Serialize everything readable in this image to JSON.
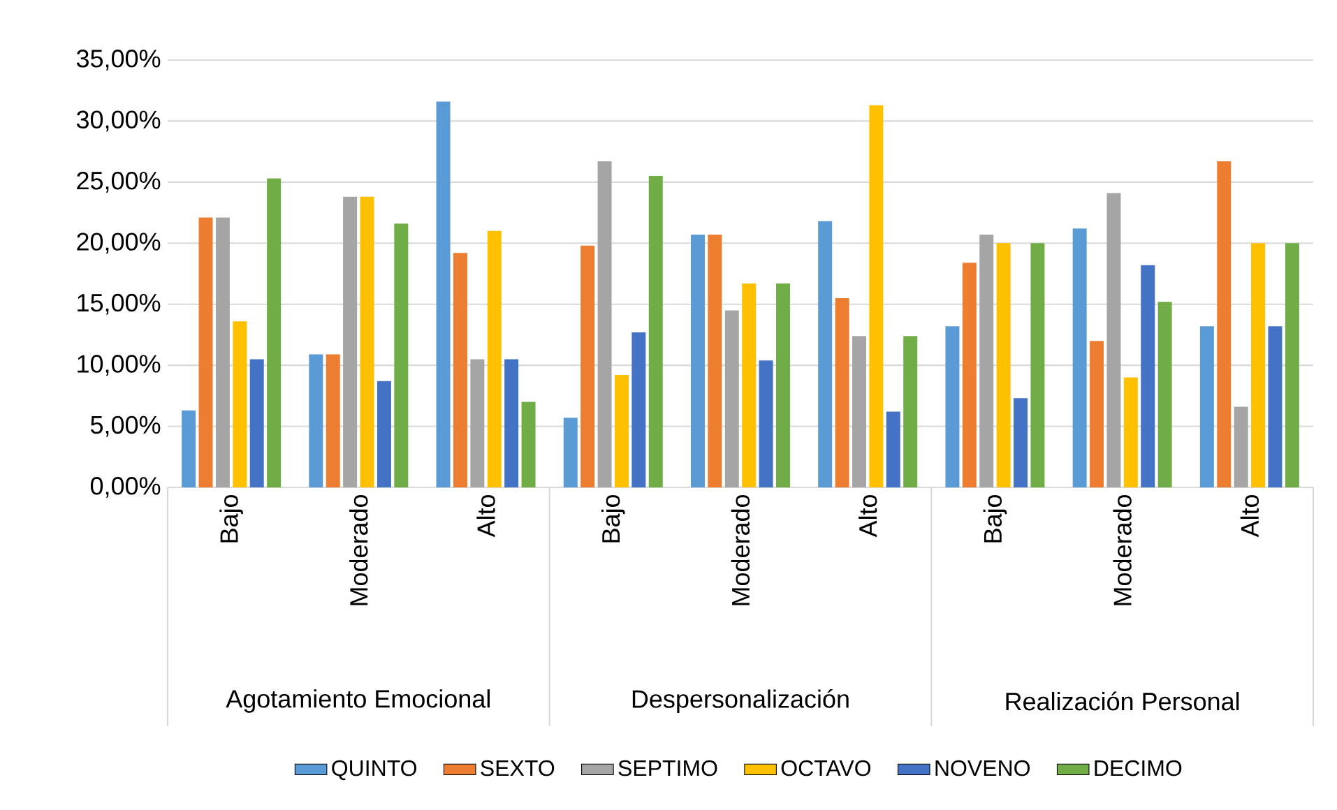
{
  "chart_data": {
    "type": "bar",
    "categories": [
      "Bajo",
      "Moderado",
      "Alto",
      "Bajo",
      "Moderado",
      "Alto",
      "Bajo",
      "Moderado",
      "Alto"
    ],
    "annotations": [
      "Agotamiento Emocional",
      "Despersonalización",
      "Realización Personal"
    ],
    "series": [
      {
        "name": "QUINTO",
        "color": "#5b9bd5",
        "values": [
          6.3,
          10.9,
          31.6,
          5.7,
          20.7,
          21.8,
          13.2,
          21.2,
          13.2
        ]
      },
      {
        "name": "SEXTO",
        "color": "#ed7d31",
        "values": [
          22.1,
          10.9,
          19.2,
          19.8,
          20.7,
          15.5,
          18.4,
          12.0,
          26.7
        ]
      },
      {
        "name": "SEPTIMO",
        "color": "#a5a5a5",
        "values": [
          22.1,
          23.8,
          10.5,
          26.7,
          14.5,
          12.4,
          20.7,
          24.1,
          6.6
        ]
      },
      {
        "name": "OCTAVO",
        "color": "#ffc000",
        "values": [
          13.6,
          23.8,
          21.0,
          9.2,
          16.7,
          31.3,
          20.0,
          9.0,
          20.0
        ]
      },
      {
        "name": "NOVENO",
        "color": "#4472c4",
        "values": [
          10.5,
          8.7,
          10.5,
          12.7,
          10.4,
          6.2,
          7.3,
          18.2,
          13.2
        ]
      },
      {
        "name": "DECIMO",
        "color": "#70ad47",
        "values": [
          25.3,
          21.6,
          7.0,
          25.5,
          16.7,
          12.4,
          20.0,
          15.2,
          20.0
        ]
      }
    ],
    "ylim": [
      0,
      35
    ],
    "yticks": [
      {
        "value": 0,
        "label": "0,00%"
      },
      {
        "value": 5,
        "label": "5,00%"
      },
      {
        "value": 10,
        "label": "10,00%"
      },
      {
        "value": 15,
        "label": "15,00%"
      },
      {
        "value": 20,
        "label": "20,00%"
      },
      {
        "value": 25,
        "label": "25,00%"
      },
      {
        "value": 30,
        "label": "30,00%"
      },
      {
        "value": 35,
        "label": "35,00%"
      }
    ],
    "grid": "y",
    "legend": "bottom"
  }
}
